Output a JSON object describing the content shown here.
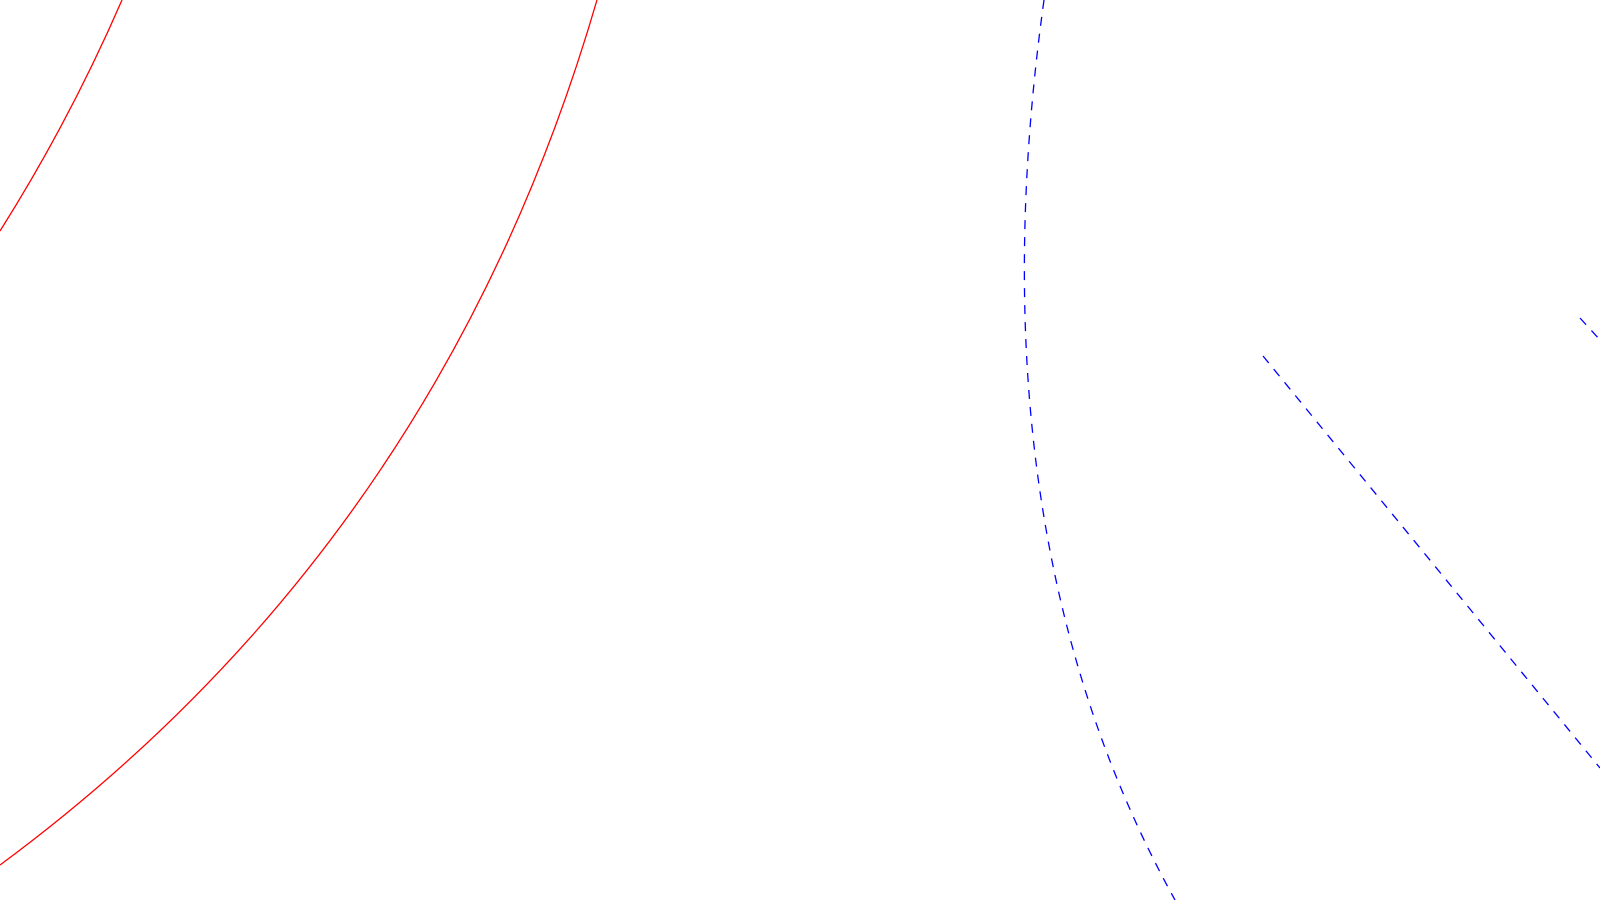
{
  "diagram": {
    "background": "#ffffff",
    "colors": {
      "solid_curve": "#ff0000",
      "dashed_curve": "#0000ff"
    },
    "curves": [
      {
        "name": "red-arc-inner",
        "style": "solid",
        "color_key": "solid_curve"
      },
      {
        "name": "red-arc-outer",
        "style": "solid",
        "color_key": "solid_curve"
      },
      {
        "name": "blue-dashed-arc",
        "style": "dashed",
        "color_key": "dashed_curve"
      },
      {
        "name": "blue-dashed-line-upper",
        "style": "dashed",
        "color_key": "dashed_curve"
      },
      {
        "name": "blue-dashed-line-lower",
        "style": "dashed",
        "color_key": "dashed_curve"
      }
    ]
  }
}
